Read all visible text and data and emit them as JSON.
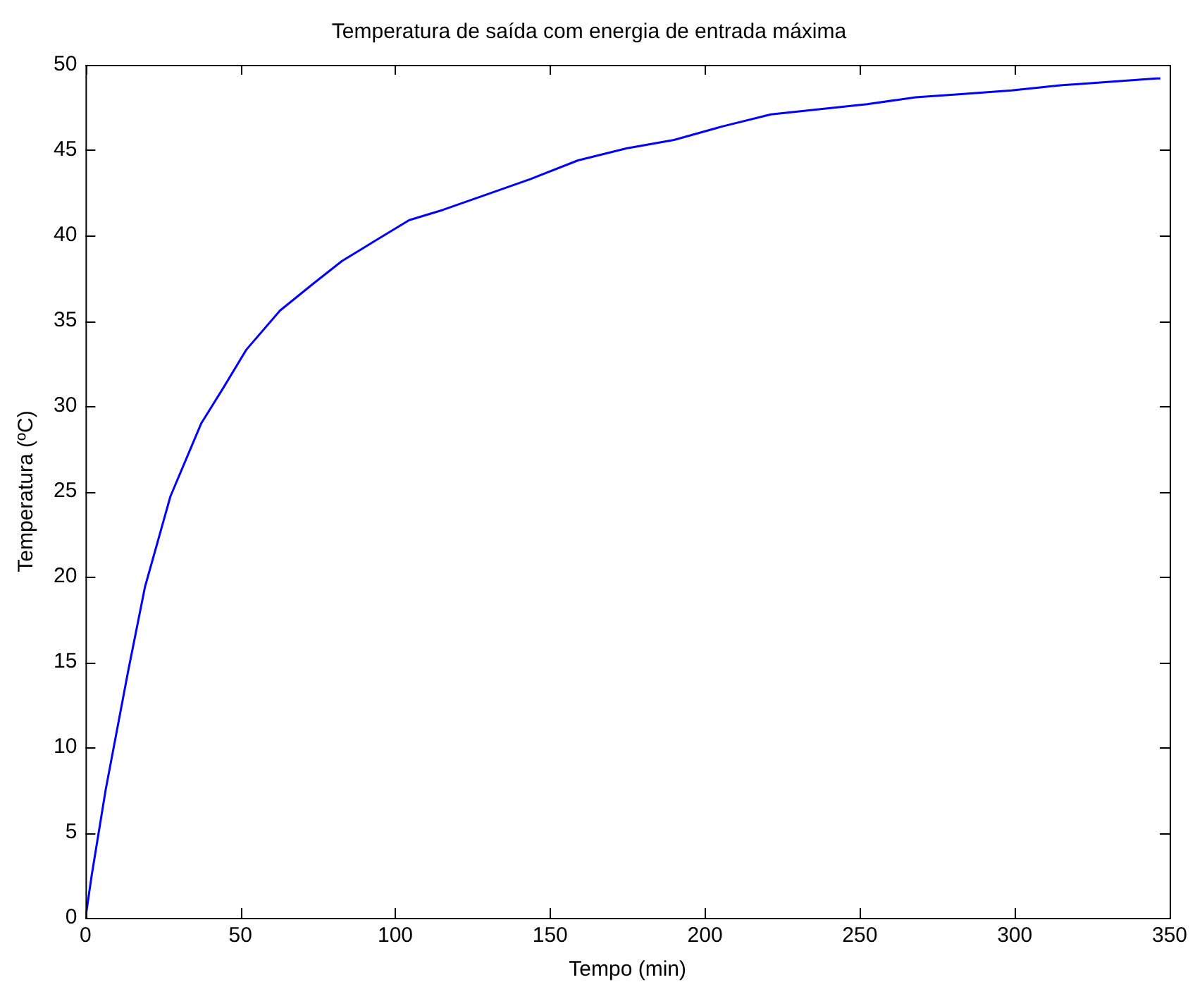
{
  "chart_data": {
    "type": "line",
    "title": "Temperatura de saída com energia de entrada máxima",
    "xlabel": "Tempo (min)",
    "ylabel": "Temperatura (ºC)",
    "xlim": [
      0,
      350
    ],
    "xticks": [
      0,
      50,
      100,
      150,
      200,
      250,
      300,
      350
    ],
    "ylim": [
      0,
      50
    ],
    "yticks": [
      0,
      5,
      10,
      15,
      20,
      25,
      30,
      35,
      40,
      45,
      50
    ],
    "grid": false,
    "legend": false,
    "marker": "none",
    "line_style": "solid",
    "series": [
      {
        "color": "#0000ff",
        "x": [
          0,
          2,
          6.5,
          13.8,
          19.2,
          27.4,
          37.4,
          44.6,
          51.9,
          62.8,
          73.7,
          82.8,
          93.6,
          104.5,
          115.4,
          127.9,
          143.6,
          159,
          174.6,
          190,
          205.8,
          221.3,
          236.8,
          252.4,
          268,
          283.5,
          299,
          314.7,
          330,
          345.8,
          347
        ],
        "values": [
          0,
          2.5,
          7.5,
          14.5,
          19.4,
          24.7,
          29.0,
          31.1,
          33.3,
          35.6,
          37.2,
          38.5,
          39.7,
          40.9,
          41.5,
          42.3,
          43.3,
          44.4,
          45.1,
          45.6,
          46.4,
          47.1,
          47.4,
          47.7,
          48.1,
          48.3,
          48.5,
          48.8,
          49.0,
          49.2,
          49.2
        ]
      }
    ]
  }
}
